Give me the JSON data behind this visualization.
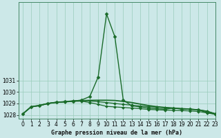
{
  "bg_color": "#cce8e8",
  "grid_color": "#99ccbb",
  "line_color": "#1a6b2a",
  "xlabel": "Graphe pression niveau de la mer (hPa)",
  "ylim": [
    1027.7,
    1037.8
  ],
  "xlim": [
    -0.5,
    23
  ],
  "yticks": [
    1028,
    1029,
    1030,
    1031
  ],
  "xticks": [
    0,
    1,
    2,
    3,
    4,
    5,
    6,
    7,
    8,
    9,
    10,
    11,
    12,
    13,
    14,
    15,
    16,
    17,
    18,
    19,
    20,
    21,
    22,
    23
  ],
  "series": [
    {
      "x": [
        0,
        1,
        2,
        3,
        4,
        5,
        6,
        7,
        8,
        9,
        10,
        11,
        12,
        13,
        14,
        15,
        16,
        17,
        18,
        19,
        20,
        21,
        22,
        23
      ],
      "y": [
        1028.1,
        1028.7,
        1028.8,
        1029.0,
        1029.1,
        1029.15,
        1029.2,
        1029.3,
        1029.6,
        1031.3,
        1036.8,
        1034.8,
        1029.3,
        1028.8,
        1028.7,
        1028.6,
        1028.55,
        1028.5,
        1028.6,
        1028.5,
        1028.5,
        1028.45,
        1028.2,
        1028.1
      ],
      "marker": "D",
      "markersize": 2.5,
      "linewidth": 1.0
    },
    {
      "x": [
        0,
        1,
        2,
        3,
        4,
        5,
        6,
        7,
        8,
        9,
        10,
        11,
        12,
        13,
        14,
        15,
        16,
        17,
        18,
        19,
        20,
        21,
        22,
        23
      ],
      "y": [
        1028.1,
        1028.72,
        1028.83,
        1029.0,
        1029.1,
        1029.15,
        1029.22,
        1029.25,
        1029.27,
        1029.28,
        1029.28,
        1029.26,
        1029.18,
        1029.08,
        1028.95,
        1028.82,
        1028.72,
        1028.65,
        1028.6,
        1028.55,
        1028.5,
        1028.44,
        1028.32,
        1028.1
      ],
      "marker": null,
      "markersize": 0,
      "linewidth": 1.3
    },
    {
      "x": [
        0,
        1,
        2,
        3,
        4,
        5,
        6,
        7,
        8,
        9,
        10,
        11,
        12,
        13,
        14,
        15,
        16,
        17,
        18,
        19,
        20,
        21,
        22,
        23
      ],
      "y": [
        1028.1,
        1028.72,
        1028.83,
        1029.0,
        1029.1,
        1029.15,
        1029.22,
        1029.25,
        1029.22,
        1029.15,
        1029.08,
        1029.0,
        1028.92,
        1028.85,
        1028.78,
        1028.72,
        1028.68,
        1028.62,
        1028.58,
        1028.54,
        1028.5,
        1028.45,
        1028.32,
        1028.1
      ],
      "marker": "D",
      "markersize": 2.0,
      "linewidth": 0.9
    },
    {
      "x": [
        2,
        3,
        4,
        5,
        6,
        7,
        8,
        9,
        10,
        11,
        12,
        13,
        14,
        15,
        16,
        17,
        18,
        19,
        20,
        21,
        22,
        23
      ],
      "y": [
        1028.83,
        1029.0,
        1029.1,
        1029.12,
        1029.18,
        1029.2,
        1029.08,
        1028.92,
        1028.75,
        1028.7,
        1028.65,
        1028.6,
        1028.55,
        1028.48,
        1028.45,
        1028.42,
        1028.4,
        1028.38,
        1028.35,
        1028.3,
        1028.18,
        1028.05
      ],
      "marker": "D",
      "markersize": 2.0,
      "linewidth": 0.9
    }
  ]
}
